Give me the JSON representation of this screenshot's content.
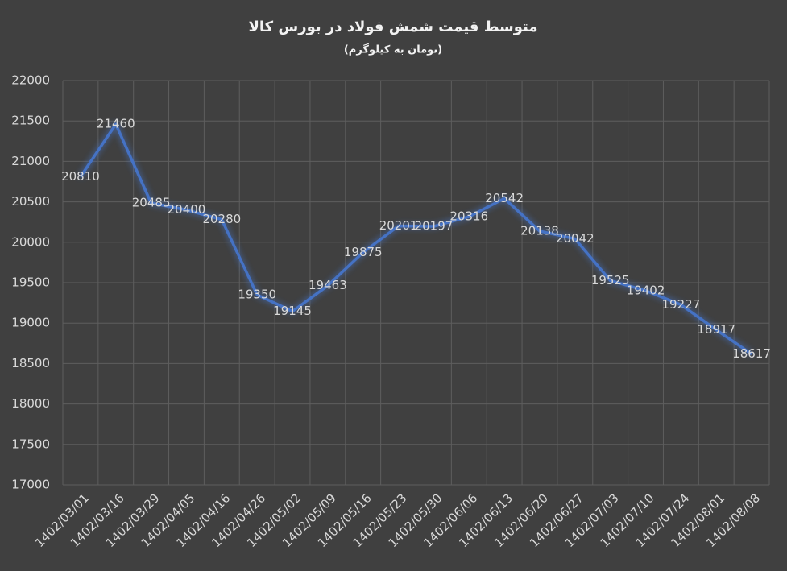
{
  "chart_data": {
    "type": "line",
    "title": "متوسط قیمت شمش فولاد در بورس کالا",
    "subtitle": "(تومان به کیلوگرم)",
    "categories": [
      "1402/03/01",
      "1402/03/16",
      "1402/03/29",
      "1402/04/05",
      "1402/04/16",
      "1402/04/26",
      "1402/05/02",
      "1402/05/09",
      "1402/05/16",
      "1402/05/23",
      "1402/05/30",
      "1402/06/06",
      "1402/06/13",
      "1402/06/20",
      "1402/06/27",
      "1402/07/03",
      "1402/07/10",
      "1402/07/24",
      "1402/08/01",
      "1402/08/08"
    ],
    "values": [
      20810,
      21460,
      20485,
      20400,
      20280,
      19350,
      19145,
      19463,
      19875,
      20201,
      20197,
      20316,
      20542,
      20138,
      20042,
      19525,
      19402,
      19227,
      18917,
      18617
    ],
    "color": "#4472c4",
    "ylim": [
      17000,
      22000
    ],
    "yticks": [
      17000,
      17500,
      18000,
      18500,
      19000,
      19500,
      20000,
      20500,
      21000,
      21500,
      22000
    ],
    "grid": true
  }
}
